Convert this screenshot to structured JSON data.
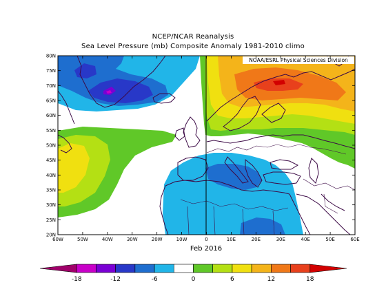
{
  "header": {
    "line1": "NCEP/NCAR Reanalysis",
    "line2": "Sea Level Pressure (mb) Composite Anomaly 1981-2010 climo"
  },
  "map": {
    "credit": "NOAA/ESRL Physical Sciences Division",
    "date_label": "Feb 2016",
    "lat_ticks": [
      "80N",
      "75N",
      "70N",
      "65N",
      "60N",
      "55N",
      "50N",
      "45N",
      "40N",
      "35N",
      "30N",
      "25N",
      "20N"
    ],
    "lon_ticks": [
      "60W",
      "50W",
      "40W",
      "30W",
      "20W",
      "10W",
      "0",
      "10E",
      "20E",
      "30E",
      "40E",
      "50E",
      "60E"
    ],
    "extent": {
      "lon_min": -60,
      "lon_max": 60,
      "lat_min": 20,
      "lat_max": 80
    }
  },
  "colorbar": {
    "labels": [
      "-18",
      "-12",
      "-6",
      "0",
      "6",
      "12",
      "18"
    ],
    "colors": [
      "#a0006a",
      "#c800c8",
      "#7a00d4",
      "#2838c8",
      "#1e6ecf",
      "#21b5e8",
      "#ffffff",
      "#60c828",
      "#b4e014",
      "#f0e010",
      "#f4b41a",
      "#f07818",
      "#e8401c",
      "#d20000"
    ]
  },
  "chart_data": {
    "type": "contour-map",
    "title": "Sea Level Pressure (mb) Composite Anomaly 1981-2010 climo",
    "period": "Feb 2016",
    "units": "mb",
    "levels": [
      -18,
      -15,
      -12,
      -9,
      -6,
      -3,
      0,
      3,
      6,
      9,
      12,
      15,
      18
    ]
  }
}
